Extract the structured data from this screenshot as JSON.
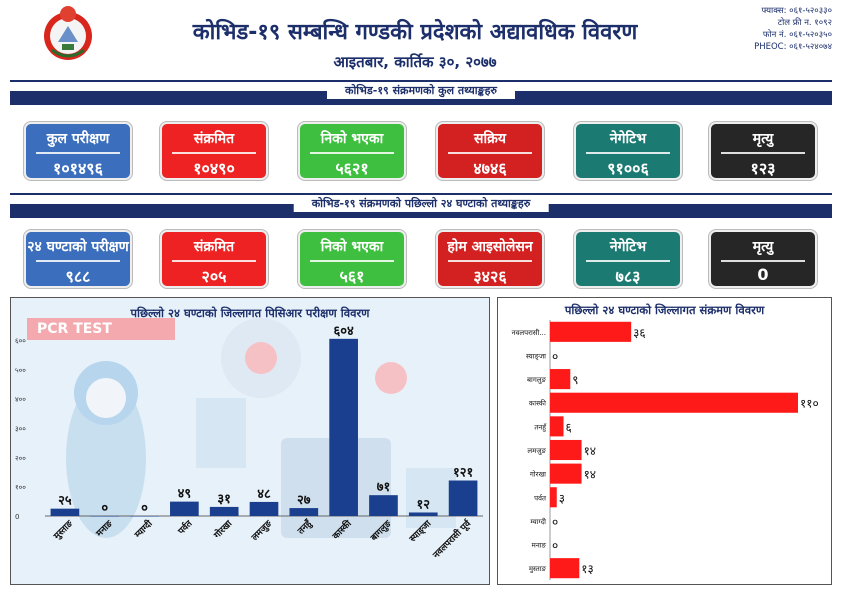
{
  "header": {
    "title": "कोभिड-१९ सम्बन्धि गण्डकी प्रदेशको अद्यावधिक विवरण",
    "date": "आइतबार, कार्तिक ३०, २०७७",
    "contacts": [
      "फ्याक्स: ०६१-५२०३३०",
      "टोल फ्री न. १०९२",
      "फोन नं. ०६१-५२०३५०",
      "PHEOC: ०६१-५२४०७४"
    ]
  },
  "sections": {
    "total": "कोभिड-१९ संक्रमणको कुल तथ्याङ्कहरु",
    "last24": "कोभिड-१९ संक्रमणको पछिल्लो २४ घण्टाको तथ्याङ्कहरु"
  },
  "totals": [
    {
      "label": "कुल परीक्षण",
      "value": "१०१४९६",
      "color": "blue"
    },
    {
      "label": "संक्रमित",
      "value": "१०४९०",
      "color": "red"
    },
    {
      "label": "निको भएका",
      "value": "५६२१",
      "color": "green"
    },
    {
      "label": "सक्रिय",
      "value": "४७४६",
      "color": "dred"
    },
    {
      "label": "नेगेटिभ",
      "value": "९१००६",
      "color": "teal"
    },
    {
      "label": "मृत्यु",
      "value": "१२३",
      "color": "black"
    }
  ],
  "last24": [
    {
      "label": "२४ घण्टाको परीक्षण",
      "value": "९८८",
      "color": "blue"
    },
    {
      "label": "संक्रमित",
      "value": "२०५",
      "color": "red"
    },
    {
      "label": "निको भएका",
      "value": "५६१",
      "color": "green"
    },
    {
      "label": "होम आइसोलेसन",
      "value": "३४२६",
      "color": "dred"
    },
    {
      "label": "नेगेटिभ",
      "value": "७८३",
      "color": "teal"
    },
    {
      "label": "मृत्यु",
      "value": "0",
      "color": "black"
    }
  ],
  "colors": {
    "blue": "#3b6ebd",
    "red": "#ee2222",
    "green": "#3fbf3f",
    "dred": "#d32020",
    "teal": "#1b7a72",
    "black": "#262626",
    "bar_pcr": "#1b3f8f",
    "bar_inf": "#ff1a1a"
  },
  "pcr_badge": "PCR TEST",
  "chart_data": [
    {
      "type": "bar",
      "title": "पछिल्लो २४ घण्टाको जिल्लागत पिसिआर परीक्षण विवरण",
      "categories": [
        "मुस्ताङ",
        "मनाङ",
        "म्याग्दी",
        "पर्वत",
        "गोरखा",
        "लमजुङ",
        "तनहुँ",
        "कास्की",
        "बागलुङ",
        "स्याङ्जा",
        "नवलपरासी पूर्व"
      ],
      "values": [
        25,
        0,
        0,
        49,
        31,
        48,
        27,
        604,
        71,
        12,
        121
      ],
      "value_labels": [
        "२५",
        "०",
        "०",
        "४९",
        "३१",
        "४८",
        "२७",
        "६०४",
        "७१",
        "१२",
        "१२१"
      ],
      "yticks": [
        "0",
        "१००",
        "२००",
        "३००",
        "४००",
        "५००",
        "६००"
      ],
      "ylim": [
        0,
        600
      ]
    },
    {
      "type": "bar",
      "orientation": "horizontal",
      "title": "पछिल्लो २४ घण्टाको जिल्लागत संक्रमण विवरण",
      "categories": [
        "नवलपरासी...",
        "स्याङ्जा",
        "बागलुङ",
        "कास्की",
        "तनहुँ",
        "लमजुङ",
        "गोरखा",
        "पर्वत",
        "म्याग्दी",
        "मनाङ",
        "मुस्ताङ"
      ],
      "values": [
        36,
        0,
        9,
        110,
        6,
        14,
        14,
        3,
        0,
        0,
        13
      ],
      "value_labels": [
        "३६",
        "०",
        "९",
        "११०",
        "६",
        "१४",
        "१४",
        "३",
        "०",
        "०",
        "१३"
      ],
      "xlim": [
        0,
        110
      ]
    }
  ]
}
